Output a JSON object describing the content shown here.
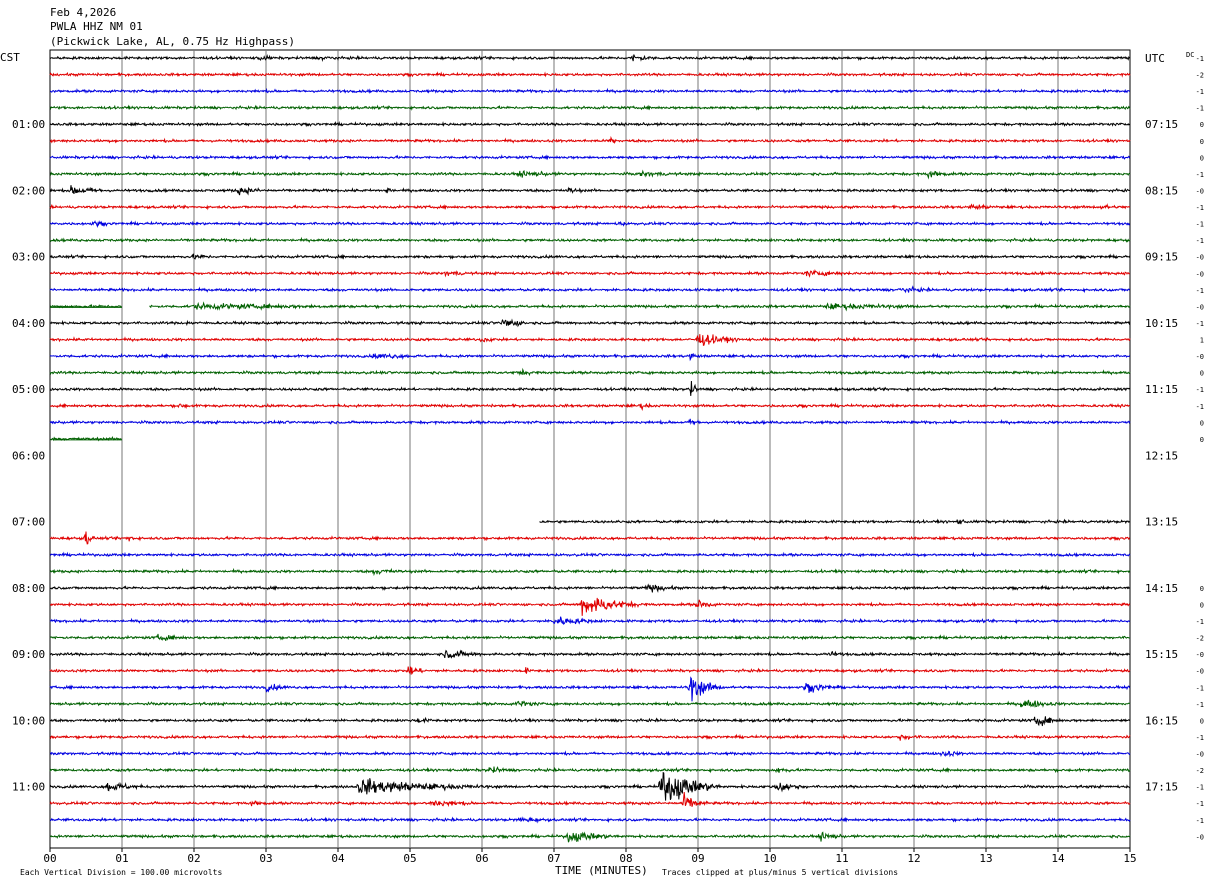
{
  "header": {
    "line1": "Feb 4,2026",
    "line2": "PWLA HHZ NM 01",
    "line3": "(Pickwick Lake, AL, 0.75 Hz Highpass)"
  },
  "left_tz": "CST",
  "right_tz": "UTC",
  "dc_label": "DC",
  "footer": {
    "scale_note": "Each Vertical Division =  100.00 microvolts",
    "xlabel": "TIME (MINUTES)",
    "clip_note": "Traces clipped at plus/minus 5 vertical divisions"
  },
  "chart_data": {
    "type": "line",
    "xlim": [
      0,
      15
    ],
    "x_ticks": [
      "00",
      "01",
      "02",
      "03",
      "04",
      "05",
      "06",
      "07",
      "08",
      "09",
      "10",
      "11",
      "12",
      "13",
      "14",
      "15"
    ],
    "minutes_per_line": 15,
    "lines_per_hour": 4,
    "total_lines": 48,
    "trace_colors": [
      "#000000",
      "#e00000",
      "#0000e0",
      "#006000"
    ],
    "local_hour_labels": [
      "01:00",
      "02:00",
      "03:00",
      "04:00",
      "05:00",
      "06:00",
      "07:00",
      "08:00",
      "09:00",
      "10:00",
      "11:00"
    ],
    "utc_hour_labels": [
      "UTC",
      "07:15",
      "08:15",
      "09:15",
      "10:15",
      "11:15",
      "12:15",
      "13:15",
      "14:15",
      "15:15",
      "16:15",
      "17:15"
    ],
    "dc_offsets": [
      "-1",
      "-2",
      "-1",
      "-1",
      "0",
      "0",
      "0",
      "-1",
      "-0",
      "-1",
      "-1",
      "-1",
      "-0",
      "-0",
      "-1",
      "-0",
      "-1",
      "1",
      "-0",
      "0",
      "-1",
      "-1",
      "0",
      "0",
      "",
      "",
      "",
      "",
      "",
      "",
      "",
      "",
      "0",
      "0",
      "-1",
      "-2",
      "-0",
      "-0",
      "-1",
      "-1",
      "0",
      "-1",
      "-0",
      "-2",
      "-1",
      "-1",
      "-1",
      "-0"
    ],
    "gaps": [
      {
        "line": 15,
        "start_min": 1.0,
        "end_min": 1.38
      },
      {
        "line": 23,
        "start_min": 1.0,
        "end_min": 15
      },
      {
        "line": 24,
        "start_min": 0,
        "end_min": 15
      },
      {
        "line": 25,
        "start_min": 0,
        "end_min": 15
      },
      {
        "line": 26,
        "start_min": 0,
        "end_min": 15
      },
      {
        "line": 27,
        "start_min": 0,
        "end_min": 15
      },
      {
        "line": 28,
        "start_min": 0,
        "end_min": 6.8
      }
    ],
    "events": [
      {
        "line": 0,
        "min": 2.9,
        "amp": 3,
        "dur": 0.5
      },
      {
        "line": 0,
        "min": 3.8,
        "amp": 3,
        "dur": 0.5
      },
      {
        "line": 0,
        "min": 8.1,
        "amp": 4,
        "dur": 0.6
      },
      {
        "line": 5,
        "min": 7.8,
        "amp": 5,
        "dur": 0.15
      },
      {
        "line": 7,
        "min": 6.5,
        "amp": 3,
        "dur": 1.3
      },
      {
        "line": 7,
        "min": 8.2,
        "amp": 3,
        "dur": 1.2
      },
      {
        "line": 7,
        "min": 12.2,
        "amp": 4,
        "dur": 0.6
      },
      {
        "line": 8,
        "min": 0.3,
        "amp": 5,
        "dur": 0.8
      },
      {
        "line": 8,
        "min": 2.6,
        "amp": 4,
        "dur": 0.8
      },
      {
        "line": 8,
        "min": 4.7,
        "amp": 6,
        "dur": 0.1
      },
      {
        "line": 8,
        "min": 7.2,
        "amp": 3,
        "dur": 0.5
      },
      {
        "line": 9,
        "min": 12.8,
        "amp": 3,
        "dur": 0.8
      },
      {
        "line": 9,
        "min": 14.6,
        "amp": 3,
        "dur": 0.5
      },
      {
        "line": 10,
        "min": 0.6,
        "amp": 3,
        "dur": 0.5
      },
      {
        "line": 10,
        "min": 7.9,
        "amp": 3,
        "dur": 0.3
      },
      {
        "line": 12,
        "min": 2.0,
        "amp": 3,
        "dur": 0.6
      },
      {
        "line": 13,
        "min": 5.5,
        "amp": 3,
        "dur": 0.8
      },
      {
        "line": 13,
        "min": 10.5,
        "amp": 3,
        "dur": 1.5
      },
      {
        "line": 14,
        "min": 11.8,
        "amp": 3,
        "dur": 1.0
      },
      {
        "line": 15,
        "min": 2.0,
        "amp": 3,
        "dur": 5.0
      },
      {
        "line": 15,
        "min": 10.8,
        "amp": 3,
        "dur": 3.0
      },
      {
        "line": 16,
        "min": 6.3,
        "amp": 6,
        "dur": 0.5
      },
      {
        "line": 16,
        "min": 1.9,
        "amp": 2,
        "dur": 0.6
      },
      {
        "line": 17,
        "min": 9.0,
        "amp": 7,
        "dur": 0.8
      },
      {
        "line": 17,
        "min": 6.0,
        "amp": 3,
        "dur": 0.5
      },
      {
        "line": 18,
        "min": 4.5,
        "amp": 3,
        "dur": 1.5
      },
      {
        "line": 18,
        "min": 8.9,
        "amp": 4,
        "dur": 0.2
      },
      {
        "line": 19,
        "min": 6.5,
        "amp": 3,
        "dur": 0.8
      },
      {
        "line": 20,
        "min": 8.9,
        "amp": 8,
        "dur": 0.15
      },
      {
        "line": 21,
        "min": 1.8,
        "amp": 3,
        "dur": 0.4
      },
      {
        "line": 21,
        "min": 8.2,
        "amp": 3,
        "dur": 0.4
      },
      {
        "line": 22,
        "min": 8.9,
        "amp": 4,
        "dur": 0.3
      },
      {
        "line": 28,
        "min": 12.6,
        "amp": 3,
        "dur": 0.4
      },
      {
        "line": 29,
        "min": 0.5,
        "amp": 8,
        "dur": 0.15
      },
      {
        "line": 29,
        "min": 1.1,
        "amp": 6,
        "dur": 0.1
      },
      {
        "line": 31,
        "min": 4.5,
        "amp": 3,
        "dur": 1.0
      },
      {
        "line": 32,
        "min": 8.3,
        "amp": 4,
        "dur": 0.8
      },
      {
        "line": 33,
        "min": 7.4,
        "amp": 12,
        "dur": 0.9
      },
      {
        "line": 33,
        "min": 9.0,
        "amp": 5,
        "dur": 0.4
      },
      {
        "line": 34,
        "min": 7.0,
        "amp": 5,
        "dur": 1.0
      },
      {
        "line": 35,
        "min": 1.5,
        "amp": 3,
        "dur": 1.0
      },
      {
        "line": 36,
        "min": 5.5,
        "amp": 5,
        "dur": 0.8
      },
      {
        "line": 36,
        "min": 10.8,
        "amp": 3,
        "dur": 0.6
      },
      {
        "line": 37,
        "min": 5.0,
        "amp": 6,
        "dur": 0.3
      },
      {
        "line": 37,
        "min": 6.6,
        "amp": 5,
        "dur": 0.1
      },
      {
        "line": 38,
        "min": 8.9,
        "amp": 13,
        "dur": 0.5
      },
      {
        "line": 38,
        "min": 3.0,
        "amp": 4,
        "dur": 0.6
      },
      {
        "line": 38,
        "min": 10.5,
        "amp": 5,
        "dur": 0.8
      },
      {
        "line": 39,
        "min": 6.5,
        "amp": 4,
        "dur": 0.6
      },
      {
        "line": 39,
        "min": 13.5,
        "amp": 5,
        "dur": 0.8
      },
      {
        "line": 40,
        "min": 13.7,
        "amp": 6,
        "dur": 0.5
      },
      {
        "line": 40,
        "min": 5.1,
        "amp": 3,
        "dur": 0.5
      },
      {
        "line": 41,
        "min": 11.8,
        "amp": 3,
        "dur": 0.8
      },
      {
        "line": 42,
        "min": 12.4,
        "amp": 4,
        "dur": 0.5
      },
      {
        "line": 43,
        "min": 6.1,
        "amp": 4,
        "dur": 0.5
      },
      {
        "line": 43,
        "min": 10.1,
        "amp": 4,
        "dur": 0.4
      },
      {
        "line": 44,
        "min": 0.8,
        "amp": 5,
        "dur": 0.8
      },
      {
        "line": 44,
        "min": 4.3,
        "amp": 8,
        "dur": 2.2
      },
      {
        "line": 44,
        "min": 8.5,
        "amp": 20,
        "dur": 0.8
      },
      {
        "line": 44,
        "min": 10.1,
        "amp": 6,
        "dur": 0.6
      },
      {
        "line": 45,
        "min": 8.8,
        "amp": 9,
        "dur": 0.4
      },
      {
        "line": 45,
        "min": 5.3,
        "amp": 4,
        "dur": 1.0
      },
      {
        "line": 45,
        "min": 2.8,
        "amp": 3,
        "dur": 0.6
      },
      {
        "line": 46,
        "min": 6.5,
        "amp": 3,
        "dur": 1.0
      },
      {
        "line": 47,
        "min": 7.2,
        "amp": 6,
        "dur": 1.0
      },
      {
        "line": 47,
        "min": 10.7,
        "amp": 4,
        "dur": 0.6
      }
    ]
  }
}
